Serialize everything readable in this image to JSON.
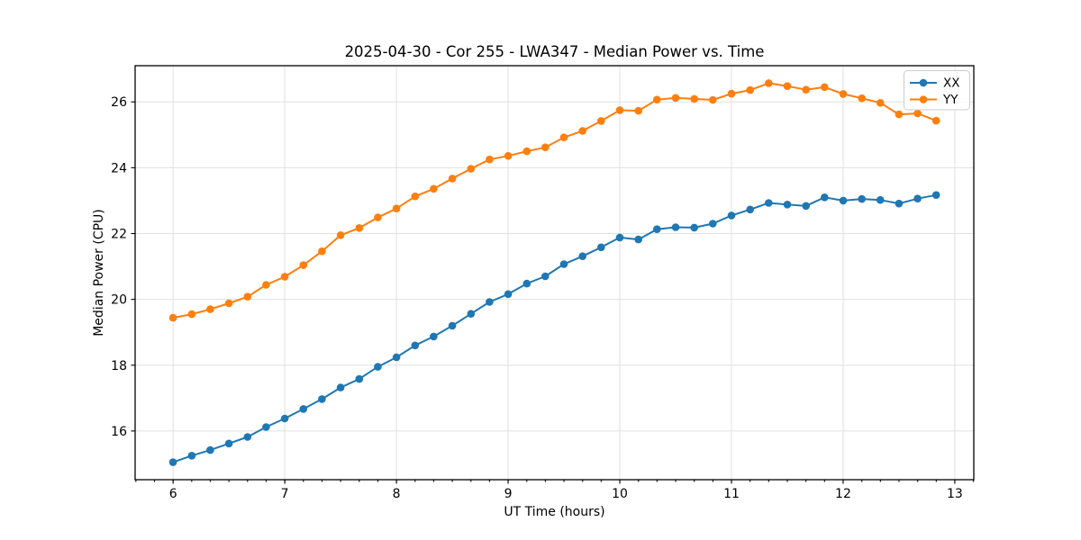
{
  "figure": {
    "title": "2025-04-30 - Cor 255 - LWA347 - Median Power vs. Time"
  },
  "chart_data": {
    "type": "line",
    "title": "2025-04-30 - Cor 255 - LWA347 - Median Power vs. Time",
    "xlabel": "UT Time (hours)",
    "ylabel": "Median Power (CPU)",
    "xlim": [
      5.66,
      13.17
    ],
    "ylim": [
      14.52,
      27.1
    ],
    "x_ticks": [
      6,
      7,
      8,
      9,
      10,
      11,
      12,
      13
    ],
    "y_ticks": [
      16,
      18,
      20,
      22,
      24,
      26
    ],
    "x_minor_step": 0.16667,
    "grid": true,
    "legend_position": "upper-right",
    "x": [
      6.0,
      6.167,
      6.333,
      6.5,
      6.667,
      6.833,
      7.0,
      7.167,
      7.333,
      7.5,
      7.667,
      7.833,
      8.0,
      8.167,
      8.333,
      8.5,
      8.667,
      8.833,
      9.0,
      9.167,
      9.333,
      9.5,
      9.667,
      9.833,
      10.0,
      10.167,
      10.333,
      10.5,
      10.667,
      10.833,
      11.0,
      11.167,
      11.333,
      11.5,
      11.667,
      11.833,
      12.0,
      12.167,
      12.333,
      12.5,
      12.667,
      12.833
    ],
    "series": [
      {
        "name": "XX",
        "color": "#1f77b4",
        "values": [
          15.05,
          15.25,
          15.42,
          15.62,
          15.82,
          16.12,
          16.38,
          16.67,
          16.97,
          17.32,
          17.58,
          17.95,
          18.24,
          18.6,
          18.87,
          19.2,
          19.56,
          19.92,
          20.16,
          20.48,
          20.7,
          21.07,
          21.31,
          21.58,
          21.88,
          21.82,
          22.13,
          22.19,
          22.18,
          22.3,
          22.55,
          22.73,
          22.93,
          22.88,
          22.84,
          23.1,
          23.0,
          23.05,
          23.02,
          22.91,
          23.06,
          23.17
        ]
      },
      {
        "name": "YY",
        "color": "#ff7f0e",
        "values": [
          19.44,
          19.55,
          19.7,
          19.88,
          20.08,
          20.44,
          20.69,
          21.04,
          21.46,
          21.95,
          22.17,
          22.49,
          22.76,
          23.13,
          23.36,
          23.67,
          23.97,
          24.25,
          24.36,
          24.5,
          24.62,
          24.92,
          25.12,
          25.42,
          25.75,
          25.73,
          26.07,
          26.12,
          26.09,
          26.06,
          26.25,
          26.36,
          26.57,
          26.48,
          26.37,
          26.45,
          26.24,
          26.11,
          25.97,
          25.62,
          25.65,
          25.43
        ]
      }
    ],
    "colors": {
      "grid": "#e0e0e0",
      "spine": "#000000",
      "tick_text": "#000000",
      "legend_border": "#cccccc",
      "background": "#ffffff"
    }
  }
}
